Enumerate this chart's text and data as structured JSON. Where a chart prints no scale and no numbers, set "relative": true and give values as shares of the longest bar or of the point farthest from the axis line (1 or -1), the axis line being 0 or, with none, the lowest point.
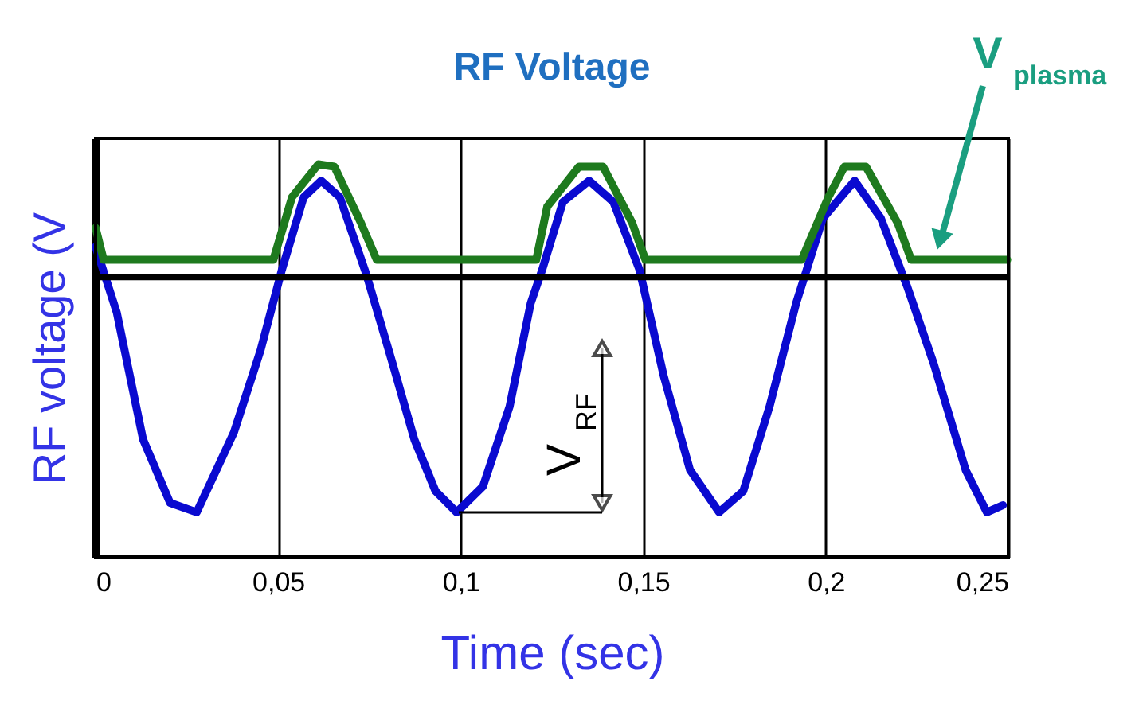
{
  "chart_data": {
    "type": "line",
    "title": "RF Voltage",
    "xlabel": "Time (sec)",
    "ylabel": "RF voltage (V",
    "relative": true,
    "xlim": [
      0,
      0.25
    ],
    "xticks": [
      {
        "value": 0,
        "label": "0"
      },
      {
        "value": 0.05,
        "label": "0,05"
      },
      {
        "value": 0.1,
        "label": "0,1"
      },
      {
        "value": 0.15,
        "label": "0,15"
      },
      {
        "value": 0.2,
        "label": "0,2"
      },
      {
        "value": 0.25,
        "label": "0,25"
      }
    ],
    "grid": "x",
    "marker": "none",
    "line_style": "solid",
    "series": [
      {
        "color": "#0a0ad0",
        "x": [
          0,
          0.0058,
          0.013,
          0.0204,
          0.0277,
          0.0379,
          0.0452,
          0.051,
          0.057,
          0.0618,
          0.0669,
          0.0742,
          0.0814,
          0.0873,
          0.0931,
          0.0989,
          0.1061,
          0.1134,
          0.1192,
          0.1223,
          0.128,
          0.1352,
          0.1418,
          0.149,
          0.1556,
          0.1628,
          0.1708,
          0.1774,
          0.1846,
          0.1919,
          0.1992,
          0.2079,
          0.2151,
          0.2223,
          0.2296,
          0.2383,
          0.2441,
          0.2485
        ],
        "values": [
          0.13,
          -0.15,
          -0.69,
          -0.96,
          -1.0,
          -0.66,
          -0.31,
          0.03,
          0.34,
          0.41,
          0.34,
          0.01,
          -0.37,
          -0.69,
          -0.91,
          -1.0,
          -0.89,
          -0.55,
          -0.11,
          0.03,
          0.32,
          0.41,
          0.32,
          0.03,
          -0.42,
          -0.82,
          -1.0,
          -0.91,
          -0.55,
          -0.11,
          0.25,
          0.41,
          0.25,
          -0.04,
          -0.37,
          -0.82,
          -1.0,
          -0.97
        ]
      },
      {
        "color": "#1e7a1e",
        "x": [
          0,
          0.0022,
          0.0487,
          0.0538,
          0.061,
          0.0654,
          0.0727,
          0.077,
          0.1207,
          0.1237,
          0.1324,
          0.139,
          0.147,
          0.1506,
          0.1934,
          0.2007,
          0.2051,
          0.211,
          0.2197,
          0.2234,
          0.2497
        ],
        "values": [
          0.21,
          0.074,
          0.074,
          0.34,
          0.48,
          0.47,
          0.23,
          0.074,
          0.074,
          0.3,
          0.47,
          0.47,
          0.23,
          0.074,
          0.074,
          0.34,
          0.47,
          0.47,
          0.23,
          0.074,
          0.074
        ]
      }
    ],
    "annotations": [
      "V$_{RF}$",
      "V$_{plasma}$"
    ]
  }
}
